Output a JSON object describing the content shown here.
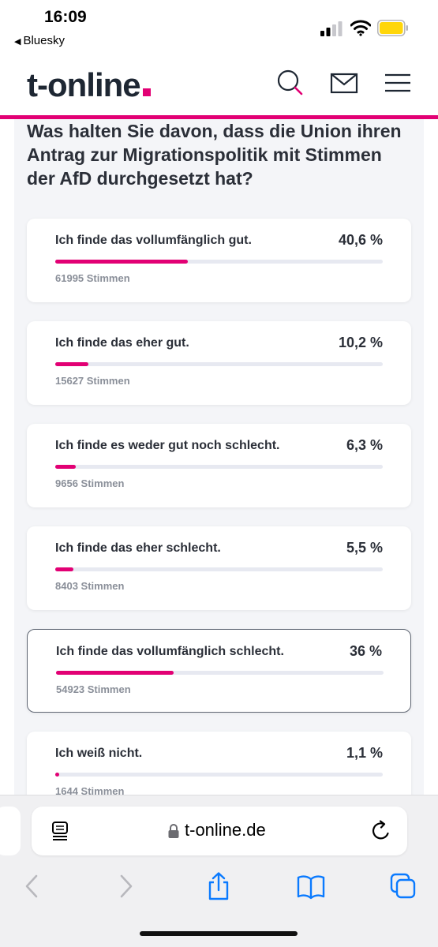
{
  "status_bar": {
    "time": "16:09",
    "back_app": "Bluesky"
  },
  "header": {
    "logo": "t-online",
    "icons": [
      "search-icon",
      "mail-icon",
      "menu-icon"
    ],
    "accent_color": "#e20074"
  },
  "poll": {
    "question": "Was halten Sie davon, dass die Union ihren Antrag zur Migrationspolitik mit Stimmen der AfD durchgesetzt hat?",
    "options": [
      {
        "label": "Ich finde das vollumfänglich gut.",
        "percent_text": "40,6 %",
        "percent": 40.6,
        "votes": "61995 Stimmen"
      },
      {
        "label": "Ich finde das eher gut.",
        "percent_text": "10,2 %",
        "percent": 10.2,
        "votes": "15627 Stimmen"
      },
      {
        "label": "Ich finde es weder gut noch schlecht.",
        "percent_text": "6,3 %",
        "percent": 6.3,
        "votes": "9656 Stimmen"
      },
      {
        "label": "Ich finde das eher schlecht.",
        "percent_text": "5,5 %",
        "percent": 5.5,
        "votes": "8403 Stimmen"
      },
      {
        "label": "Ich finde das vollumfänglich schlecht.",
        "percent_text": "36 %",
        "percent": 36,
        "votes": "54923 Stimmen",
        "selected": true
      },
      {
        "label": "Ich weiß nicht.",
        "percent_text": "1,1 %",
        "percent": 1.1,
        "votes": "1644 Stimmen"
      }
    ]
  },
  "browser": {
    "url": "t-online.de",
    "icons": [
      "reader-icon",
      "lock-icon",
      "reload-icon",
      "back-arrow-icon",
      "forward-arrow-icon",
      "share-icon",
      "bookmarks-icon",
      "tabs-icon"
    ]
  }
}
